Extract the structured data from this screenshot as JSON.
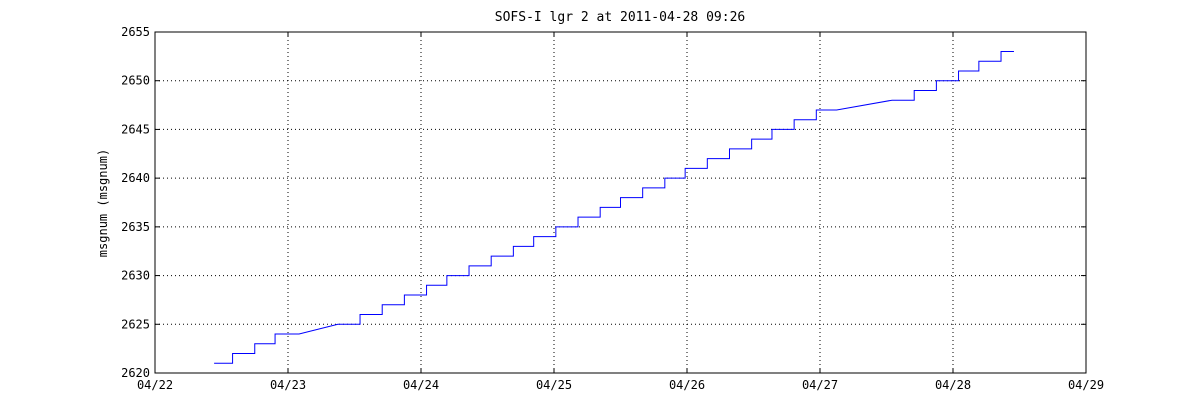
{
  "chart_data": {
    "type": "line",
    "title": "SOFS-I lgr 2 at 2011-04-28 09:26",
    "xlabel": "",
    "ylabel": "msgnum (msgnum)",
    "xlim": [
      "2011-04-22 00:00",
      "2011-04-29 00:00"
    ],
    "ylim": [
      2620,
      2655
    ],
    "x_tick_labels": [
      "04/22",
      "04/23",
      "04/24",
      "04/25",
      "04/26",
      "04/27",
      "04/28",
      "04/29"
    ],
    "y_tick_labels": [
      "2620",
      "2625",
      "2630",
      "2635",
      "2640",
      "2645",
      "2650",
      "2655"
    ],
    "y_ticks": [
      2620,
      2625,
      2630,
      2635,
      2640,
      2645,
      2650,
      2655
    ],
    "grid": true,
    "grid_style": "dotted",
    "series": [
      {
        "color": "#0000ff",
        "points": [
          [
            "2011-04-22 10:40",
            2621
          ],
          [
            "2011-04-22 14:00",
            2621
          ],
          [
            "2011-04-22 14:00",
            2622
          ],
          [
            "2011-04-22 18:00",
            2622
          ],
          [
            "2011-04-22 18:00",
            2623
          ],
          [
            "2011-04-22 21:40",
            2623
          ],
          [
            "2011-04-22 21:40",
            2624
          ],
          [
            "2011-04-23 02:00",
            2624
          ],
          [
            "2011-04-23 09:00",
            2625
          ],
          [
            "2011-04-23 13:00",
            2625
          ],
          [
            "2011-04-23 13:00",
            2626
          ],
          [
            "2011-04-23 17:00",
            2626
          ],
          [
            "2011-04-23 17:00",
            2627
          ],
          [
            "2011-04-23 21:00",
            2627
          ],
          [
            "2011-04-23 21:00",
            2628
          ],
          [
            "2011-04-24 01:00",
            2628
          ],
          [
            "2011-04-24 01:00",
            2629
          ],
          [
            "2011-04-24 04:40",
            2629
          ],
          [
            "2011-04-24 04:40",
            2630
          ],
          [
            "2011-04-24 08:40",
            2630
          ],
          [
            "2011-04-24 08:40",
            2631
          ],
          [
            "2011-04-24 12:40",
            2631
          ],
          [
            "2011-04-24 12:40",
            2632
          ],
          [
            "2011-04-24 16:40",
            2632
          ],
          [
            "2011-04-24 16:40",
            2633
          ],
          [
            "2011-04-24 20:20",
            2633
          ],
          [
            "2011-04-24 20:20",
            2634
          ],
          [
            "2011-04-25 00:20",
            2634
          ],
          [
            "2011-04-25 00:20",
            2635
          ],
          [
            "2011-04-25 04:20",
            2635
          ],
          [
            "2011-04-25 04:20",
            2636
          ],
          [
            "2011-04-25 08:20",
            2636
          ],
          [
            "2011-04-25 08:20",
            2637
          ],
          [
            "2011-04-25 12:00",
            2637
          ],
          [
            "2011-04-25 12:00",
            2638
          ],
          [
            "2011-04-25 16:00",
            2638
          ],
          [
            "2011-04-25 16:00",
            2639
          ],
          [
            "2011-04-25 20:00",
            2639
          ],
          [
            "2011-04-25 20:00",
            2640
          ],
          [
            "2011-04-25 23:40",
            2640
          ],
          [
            "2011-04-25 23:40",
            2641
          ],
          [
            "2011-04-26 03:40",
            2641
          ],
          [
            "2011-04-26 03:40",
            2642
          ],
          [
            "2011-04-26 07:40",
            2642
          ],
          [
            "2011-04-26 07:40",
            2643
          ],
          [
            "2011-04-26 11:40",
            2643
          ],
          [
            "2011-04-26 11:40",
            2644
          ],
          [
            "2011-04-26 15:20",
            2644
          ],
          [
            "2011-04-26 15:20",
            2645
          ],
          [
            "2011-04-26 19:20",
            2645
          ],
          [
            "2011-04-26 19:20",
            2646
          ],
          [
            "2011-04-26 23:20",
            2646
          ],
          [
            "2011-04-26 23:20",
            2647
          ],
          [
            "2011-04-27 03:00",
            2647
          ],
          [
            "2011-04-27 13:00",
            2648
          ],
          [
            "2011-04-27 17:00",
            2648
          ],
          [
            "2011-04-27 17:00",
            2649
          ],
          [
            "2011-04-27 21:00",
            2649
          ],
          [
            "2011-04-27 21:00",
            2650
          ],
          [
            "2011-04-28 01:00",
            2650
          ],
          [
            "2011-04-28 01:00",
            2651
          ],
          [
            "2011-04-28 04:40",
            2651
          ],
          [
            "2011-04-28 04:40",
            2652
          ],
          [
            "2011-04-28 08:40",
            2652
          ],
          [
            "2011-04-28 08:40",
            2653
          ],
          [
            "2011-04-28 11:00",
            2653
          ]
        ]
      }
    ]
  }
}
